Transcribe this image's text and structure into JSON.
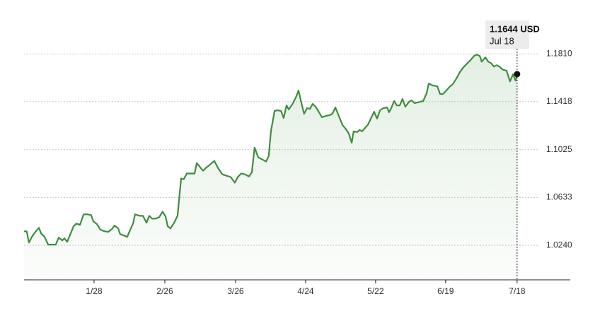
{
  "chart_data": {
    "type": "line",
    "color": "#3d8f3d",
    "grid": true,
    "tooltip": {
      "label": "1.1644 USD",
      "date": "Jul 18"
    },
    "x": [
      -0.7,
      0.4,
      1.3,
      2.5,
      3.9,
      5.4,
      6.3,
      7.7,
      9.2,
      12.3,
      13.5,
      15.0,
      15.8,
      17.0,
      18.4,
      19.6,
      20.8,
      22.2,
      23.7,
      25.4,
      26.8,
      27.7,
      29.2,
      30.6,
      32.4,
      33.8,
      35.3,
      36.4,
      37.9,
      38.7,
      40.2,
      41.6,
      42.8,
      44.0,
      44.8,
      46.6,
      48.0,
      49.5,
      50.6,
      51.8,
      53.2,
      54.7,
      56.1,
      57.3,
      58.2,
      59.3,
      60.8,
      62.2,
      63.7,
      64.8,
      66.0,
      68.0,
      69.2,
      70.1,
      71.5,
      72.7,
      73.8,
      75.3,
      77.3,
      78.8,
      80.5,
      82.2,
      84.0,
      85.7,
      86.9,
      88.3,
      89.8,
      91.5,
      92.7,
      93.8,
      95.3,
      97.0,
      98.5,
      99.6,
      100.5,
      102.0,
      103.1,
      104.6,
      105.7,
      106.9,
      107.8,
      109.2,
      110.7,
      111.8,
      113.0,
      114.1,
      115.3,
      116.5,
      117.6,
      118.8,
      119.9,
      121.4,
      123.1,
      124.6,
      125.7,
      126.9,
      128.3,
      129.8,
      131.0,
      132.4,
      133.6,
      134.4,
      135.9,
      136.8,
      137.9,
      139.1,
      140.2,
      141.7,
      142.8,
      144.0,
      145.2,
      146.6,
      148.1,
      148.9,
      149.8,
      151.0,
      152.1,
      153.3,
      154.4,
      155.6,
      157.1,
      158.2,
      159.4,
      160.5,
      161.7,
      162.9,
      164.3,
      165.2,
      166.9,
      168.7,
      169.8,
      171.0,
      172.4,
      173.6,
      175.0,
      176.5,
      177.9,
      179.4,
      180.8,
      182.3,
      183.7,
      184.9,
      186.1,
      186.9,
      188.4,
      189.6,
      190.7,
      191.9,
      193.0,
      194.2,
      195.3,
      197.1,
      198.5,
      199.7,
      200.8,
      201.4
    ],
    "values": [
      1.0355,
      1.0355,
      1.0263,
      1.0309,
      1.035,
      1.0384,
      1.0338,
      1.0309,
      1.0246,
      1.0246,
      1.0303,
      1.028,
      1.0298,
      1.0269,
      1.0338,
      1.0396,
      1.0419,
      1.0407,
      1.0494,
      1.0494,
      1.0488,
      1.0436,
      1.0413,
      1.0367,
      1.0355,
      1.035,
      1.0373,
      1.0402,
      1.0378,
      1.0332,
      1.0321,
      1.0309,
      1.0367,
      1.0419,
      1.0494,
      1.0482,
      1.0482,
      1.0425,
      1.0482,
      1.0459,
      1.0459,
      1.0471,
      1.0517,
      1.0477,
      1.0396,
      1.0378,
      1.0425,
      1.0482,
      1.0788,
      1.0782,
      1.0829,
      1.0829,
      1.0829,
      1.0915,
      1.088,
      1.0852,
      1.0875,
      1.0898,
      1.0932,
      1.0875,
      1.0823,
      1.0811,
      1.08,
      1.0754,
      1.08,
      1.0829,
      1.0823,
      1.0805,
      1.084,
      1.1042,
      1.0961,
      1.0944,
      1.0927,
      1.0973,
      1.1175,
      1.1342,
      1.1348,
      1.1342,
      1.1284,
      1.1388,
      1.1354,
      1.1394,
      1.1452,
      1.1509,
      1.1406,
      1.1319,
      1.1365,
      1.1359,
      1.14,
      1.1377,
      1.1342,
      1.129,
      1.1302,
      1.1307,
      1.1319,
      1.1371,
      1.1302,
      1.1227,
      1.1198,
      1.1157,
      1.1082,
      1.1175,
      1.1169,
      1.1186,
      1.1175,
      1.1204,
      1.1227,
      1.129,
      1.1336,
      1.1279,
      1.1348,
      1.1365,
      1.1371,
      1.1331,
      1.1365,
      1.1423,
      1.1388,
      1.1388,
      1.144,
      1.1377,
      1.1417,
      1.1429,
      1.1406,
      1.1411,
      1.1417,
      1.1423,
      1.1486,
      1.1567,
      1.155,
      1.1544,
      1.1481,
      1.1481,
      1.1509,
      1.1538,
      1.1561,
      1.1607,
      1.1659,
      1.17,
      1.1729,
      1.1758,
      1.1792,
      1.1804,
      1.1792,
      1.1746,
      1.1781,
      1.1746,
      1.1734,
      1.1706,
      1.1717,
      1.1706,
      1.1683,
      1.1671,
      1.1584,
      1.1642,
      1.159,
      1.1644
    ],
    "xlim": [
      -0.7,
      223.2
    ],
    "xticks": [
      {
        "value": 28,
        "label": "1/28"
      },
      {
        "value": 57,
        "label": "2/26"
      },
      {
        "value": 86,
        "label": "3/26"
      },
      {
        "value": 114.7,
        "label": "4/24"
      },
      {
        "value": 143.4,
        "label": "5/22"
      },
      {
        "value": 172.1,
        "label": "6/19"
      },
      {
        "value": 201.4,
        "label": "7/18"
      }
    ],
    "ylim": [
      0.9957,
      1.1962
    ],
    "yticks": [
      {
        "value": 1.024,
        "label": "1.0240"
      },
      1.0633,
      1.1025,
      1.1418,
      {
        "value": 1.181,
        "label": "1.1810"
      }
    ]
  }
}
